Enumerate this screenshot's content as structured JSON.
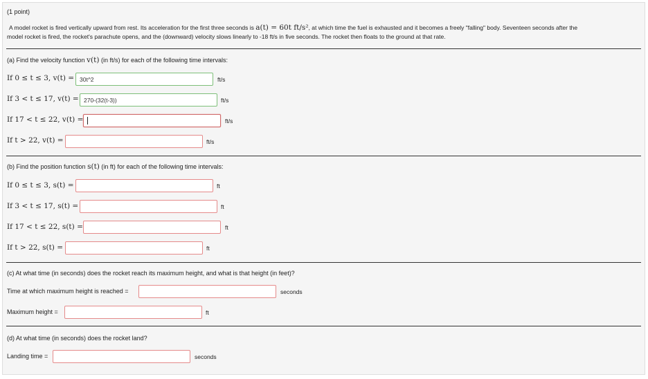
{
  "header": {
    "points": "(1 point)"
  },
  "problem": {
    "line1_a": "A model rocket is fired vertically upward from rest. Its acceleration for the first three seconds is",
    "accel_math": "a(t) = 60t ft/s²",
    "line1_b": ", at which time the fuel is exhausted and it becomes a freely \"falling\" body. Seventeen seconds after the",
    "line2": "model rocket is fired, the rocket's parachute opens, and the (downward) velocity slows linearly to -18 ft/s in five seconds. The rocket then floats to the ground at that rate."
  },
  "part_a": {
    "prompt_a": "(a) Find the velocity function",
    "prompt_math": "v(t)",
    "prompt_b": "(in ft/s) for each of the following time intervals:",
    "rows": [
      {
        "label": "If 0 ≤ t ≤ 3, v(t) =",
        "value": "30t^2",
        "unit": "ft/s"
      },
      {
        "label": "If 3 < t ≤ 17, v(t) =",
        "value": "270-(32(t-3))",
        "unit": "ft/s"
      },
      {
        "label": "If 17 < t ≤ 22, v(t) =",
        "value": "",
        "unit": "ft/s"
      },
      {
        "label": "If t > 22, v(t) =",
        "value": "",
        "unit": "ft/s"
      }
    ]
  },
  "part_b": {
    "prompt_a": "(b) Find the position function",
    "prompt_math": "s(t)",
    "prompt_b": "(in ft) for each of the following time intervals:",
    "rows": [
      {
        "label": "If 0 ≤ t ≤ 3, s(t) =",
        "value": "",
        "unit": "ft"
      },
      {
        "label": "If 3 < t ≤ 17, s(t) =",
        "value": "",
        "unit": "ft"
      },
      {
        "label": "If 17 < t ≤ 22, s(t) =",
        "value": "",
        "unit": "ft"
      },
      {
        "label": "If t > 22, s(t) =",
        "value": "",
        "unit": "ft"
      }
    ]
  },
  "part_c": {
    "prompt": "(c) At what time (in seconds) does the rocket reach its maximum height, and what is that height (in feet)?",
    "time_label": "Time at which maximum height is reached =",
    "time_value": "",
    "time_unit": "seconds",
    "height_label": "Maximum height =",
    "height_value": "",
    "height_unit": "ft"
  },
  "part_d": {
    "prompt": "(d) At what time (in seconds) does the rocket land?",
    "label": "Landing time =",
    "value": "",
    "unit": "seconds"
  },
  "colors": {
    "ok_border": "#7dbf78",
    "empty_border": "#e58a8a",
    "panel_bg": "#f5f5f5"
  }
}
